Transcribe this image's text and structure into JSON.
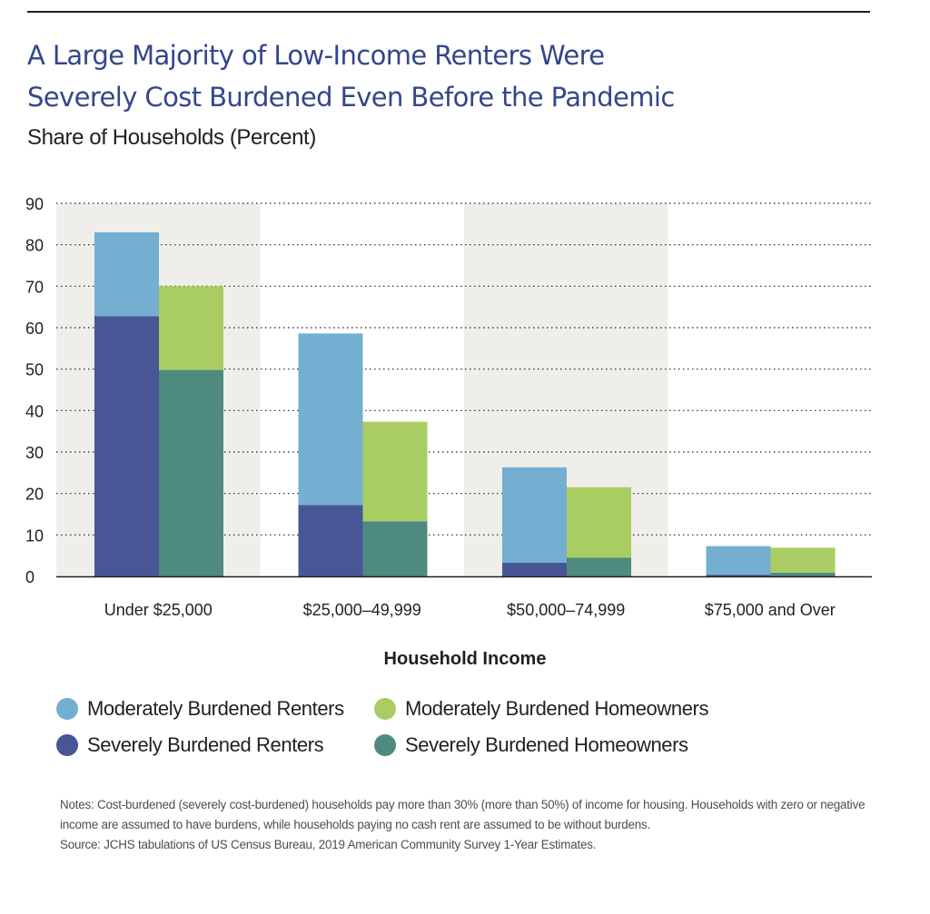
{
  "title_line1": "A Large Majority of Low-Income Renters Were",
  "title_line2": "Severely Cost Burdened Even Before the Pandemic",
  "subtitle": "Share of Households (Percent)",
  "colors": {
    "moderately_burdened_renters": "#74afd2",
    "moderately_burdened_homeowners": "#a9cd62",
    "severely_burdened_renters": "#485696",
    "severely_burdened_homeowners": "#4e8a80",
    "title": "#34468a",
    "band": "#efeeea"
  },
  "legend": {
    "items": [
      {
        "label": "Moderately Burdened Renters",
        "color": "#74afd2"
      },
      {
        "label": "Moderately Burdened Homeowners",
        "color": "#a9cd62"
      },
      {
        "label": "Severely Burdened Renters",
        "color": "#485696"
      },
      {
        "label": "Severely Burdened Homeowners",
        "color": "#4e8a80"
      }
    ]
  },
  "notes": "Notes: Cost-burdened (severely cost-burdened) households pay more than 30% (more than 50%) of income for housing. Households with zero or negative income are assumed to have burdens, while households paying no cash rent are assumed to be without burdens.",
  "source": "Source: JCHS tabulations of US Census Bureau, 2019 American Community Survey 1-Year Estimates.",
  "chart_data": {
    "type": "bar",
    "stacked": true,
    "title": "A Large Majority of Low-Income Renters Were Severely Cost Burdened Even Before the Pandemic",
    "subtitle": "Share of Households (Percent)",
    "xlabel": "Household Income",
    "ylabel": "",
    "ylim": [
      0,
      90
    ],
    "yticks": [
      0,
      10,
      20,
      30,
      40,
      50,
      60,
      70,
      80,
      90
    ],
    "grid": true,
    "legend_position": "bottom",
    "categories": [
      "Under $25,000",
      "$25,000–49,999",
      "$50,000–74,999",
      "$75,000 and Over"
    ],
    "series": [
      {
        "name": "Severely Burdened Renters",
        "stack": "Renters",
        "values": [
          62.8,
          17.2,
          3.3,
          0.4
        ]
      },
      {
        "name": "Moderately Burdened Renters",
        "stack": "Renters",
        "values": [
          20.2,
          41.4,
          23.0,
          6.9
        ]
      },
      {
        "name": "Severely Burdened Homeowners",
        "stack": "Homeowners",
        "values": [
          49.8,
          13.3,
          4.5,
          0.9
        ]
      },
      {
        "name": "Moderately Burdened Homeowners",
        "stack": "Homeowners",
        "values": [
          20.2,
          24.0,
          17.0,
          6.0
        ]
      }
    ]
  }
}
